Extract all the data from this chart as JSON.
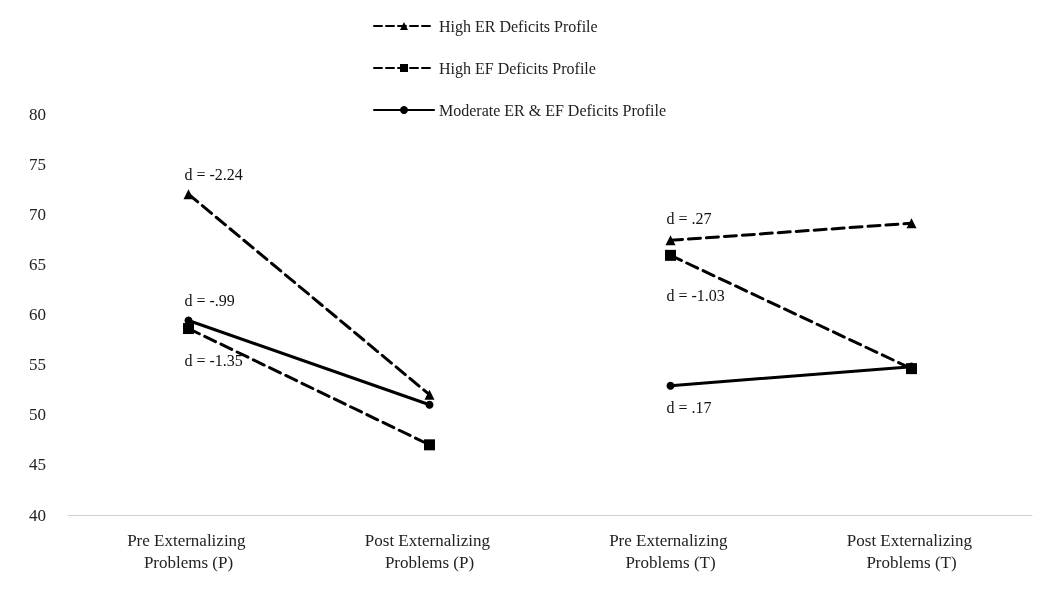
{
  "chart_data": {
    "type": "line",
    "categories": [
      "Pre Externalizing Problems (P)",
      "Post Externalizing Problems (P)",
      "Pre Externalizing Problems (T)",
      "Post Externalizing Problems (T)"
    ],
    "series": [
      {
        "name": "High ER Deficits Profile",
        "color": "#000000",
        "marker": "triangle",
        "line_style": "dashed",
        "values": [
          72,
          52,
          67.4,
          69.1
        ]
      },
      {
        "name": "High EF Deficits Profile",
        "color": "#000000",
        "marker": "square",
        "line_style": "dashed",
        "values": [
          58.6,
          47,
          65.9,
          54.6
        ]
      },
      {
        "name": "Moderate ER & EF Deficits Profile",
        "color": "#000000",
        "marker": "circle",
        "line_style": "solid",
        "values": [
          59.4,
          51,
          52.9,
          54.8
        ]
      }
    ],
    "ylim": [
      40,
      80
    ],
    "yticks": [
      40,
      45,
      50,
      55,
      60,
      65,
      70,
      75,
      80
    ],
    "grid": false,
    "legend": "top",
    "annotations": [
      {
        "text": "d = -2.24",
        "x": "Pre Externalizing Problems (P)",
        "y": 72
      },
      {
        "text": "d = -.99",
        "x": "Pre Externalizing Problems (P)",
        "y": 59.4
      },
      {
        "text": "d = -1.35",
        "x": "Pre Externalizing Problems (P)",
        "y": 58.6
      },
      {
        "text": "d = .27",
        "x": "Pre Externalizing Problems (T)",
        "y": 67.4
      },
      {
        "text": "d = -1.03",
        "x": "Pre Externalizing Problems (T)",
        "y": 65.9
      },
      {
        "text": "d = .17",
        "x": "Pre Externalizing Problems (T)",
        "y": 52.9
      }
    ]
  }
}
